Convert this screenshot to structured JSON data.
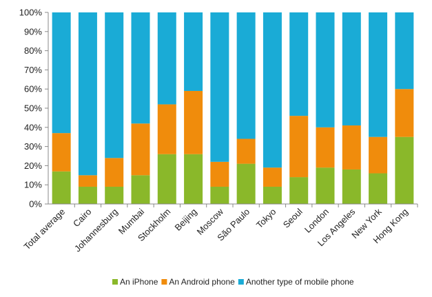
{
  "chart_data": {
    "type": "bar",
    "stacked": true,
    "categories": [
      "Total average",
      "Cairo",
      "Johannesburg",
      "Mumbai",
      "Stockholm",
      "Beijing",
      "Moscow",
      "São Paulo",
      "Tokyo",
      "Seoul",
      "London",
      "Los Angeles",
      "New York",
      "Hong Kong"
    ],
    "series": [
      {
        "name": "An iPhone",
        "color": "#8ab82a",
        "values": [
          17,
          9,
          9,
          15,
          26,
          26,
          9,
          21,
          9,
          14,
          19,
          18,
          16,
          35
        ]
      },
      {
        "name": "An Android phone",
        "color": "#f08c0c",
        "values": [
          20,
          6,
          15,
          27,
          26,
          33,
          13,
          13,
          10,
          32,
          21,
          23,
          19,
          25
        ]
      },
      {
        "name": "Another type of mobile phone",
        "color": "#1aabd6",
        "values": [
          63,
          85,
          76,
          58,
          48,
          41,
          78,
          66,
          81,
          54,
          60,
          59,
          65,
          40
        ]
      }
    ],
    "yticks": [
      "0%",
      "10%",
      "20%",
      "30%",
      "40%",
      "50%",
      "60%",
      "70%",
      "80%",
      "90%",
      "100%"
    ],
    "ylim": [
      0,
      100
    ],
    "grid": false,
    "legend_position": "bottom",
    "title": "",
    "xlabel": "",
    "ylabel": ""
  }
}
